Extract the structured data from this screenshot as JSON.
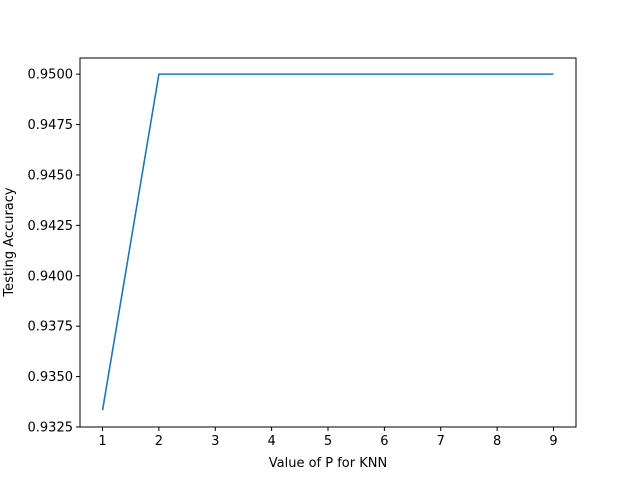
{
  "chart_data": {
    "type": "line",
    "title": "",
    "xlabel": "Value of P for KNN",
    "ylabel": "Testing Accuracy",
    "x": [
      1,
      2,
      3,
      4,
      5,
      6,
      7,
      8,
      9
    ],
    "series": [
      {
        "values": [
          0.93333,
          0.95,
          0.95,
          0.95,
          0.95,
          0.95,
          0.95,
          0.95,
          0.95
        ],
        "color": "#1f77b4"
      }
    ],
    "xlim": [
      0.6,
      9.4
    ],
    "ylim": [
      0.9325,
      0.9508
    ],
    "x_ticks": [
      1,
      2,
      3,
      4,
      5,
      6,
      7,
      8,
      9
    ],
    "x_tick_labels": [
      "1",
      "2",
      "3",
      "4",
      "5",
      "6",
      "7",
      "8",
      "9"
    ],
    "y_ticks": [
      0.9325,
      0.935,
      0.9375,
      0.94,
      0.9425,
      0.945,
      0.9475,
      0.95
    ],
    "y_tick_labels": [
      "0.9325",
      "0.9350",
      "0.9375",
      "0.9400",
      "0.9425",
      "0.9450",
      "0.9475",
      "0.9500"
    ],
    "grid": false,
    "legend": "none"
  }
}
